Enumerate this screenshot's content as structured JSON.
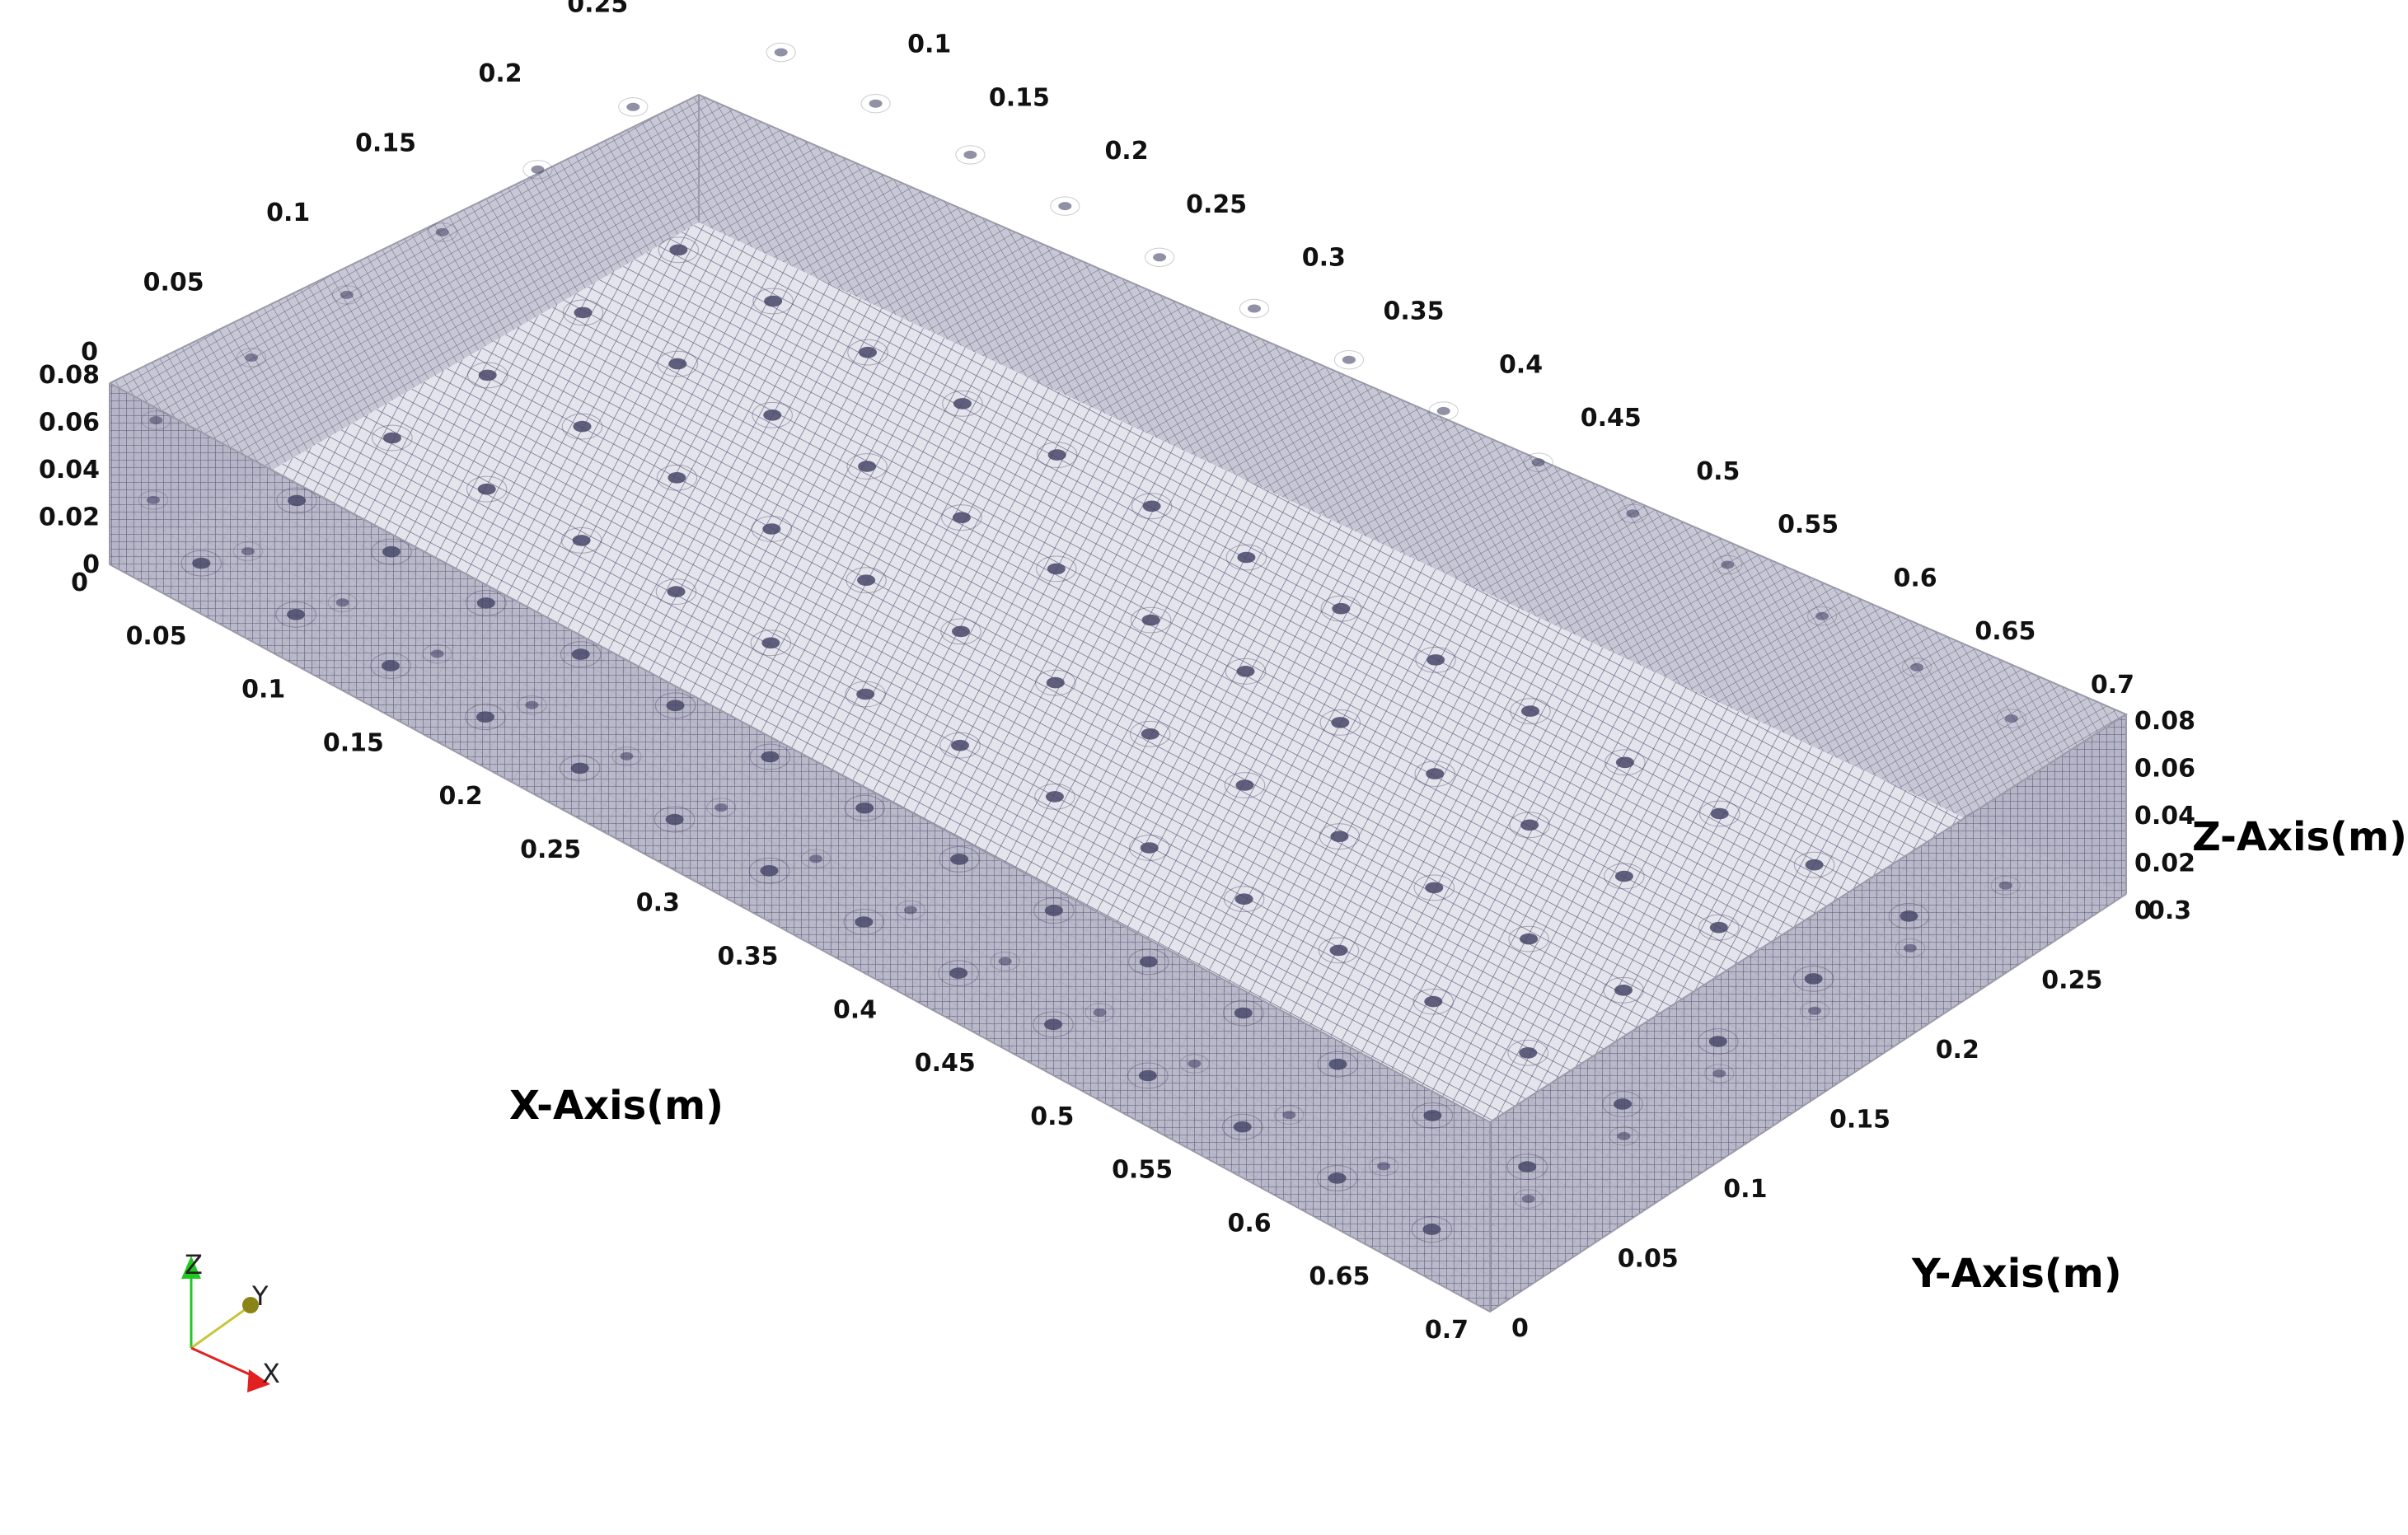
{
  "axes": {
    "x_title": "X-Axis(m)",
    "y_title": "Y-Axis(m)",
    "z_title": "Z-Axis(m)",
    "x_ticks": [
      "0",
      "0.05",
      "0.1",
      "0.15",
      "0.2",
      "0.25",
      "0.3",
      "0.35",
      "0.4",
      "0.45",
      "0.5",
      "0.55",
      "0.6",
      "0.65",
      "0.7"
    ],
    "y_ticks": [
      "0",
      "0.05",
      "0.1",
      "0.15",
      "0.2",
      "0.25",
      "0.3"
    ],
    "z_ticks": [
      "0",
      "0.02",
      "0.04",
      "0.06",
      "0.08"
    ]
  },
  "orientation_triad": {
    "x_label": "X",
    "y_label": "Y",
    "z_label": "Z",
    "x_color": "#e32020",
    "y_color": "#c8c43a",
    "z_color": "#22c822"
  },
  "colors": {
    "mesh_fill": "#dcdce6",
    "mesh_line": "#3b3b5e",
    "hole": "#48486a"
  }
}
